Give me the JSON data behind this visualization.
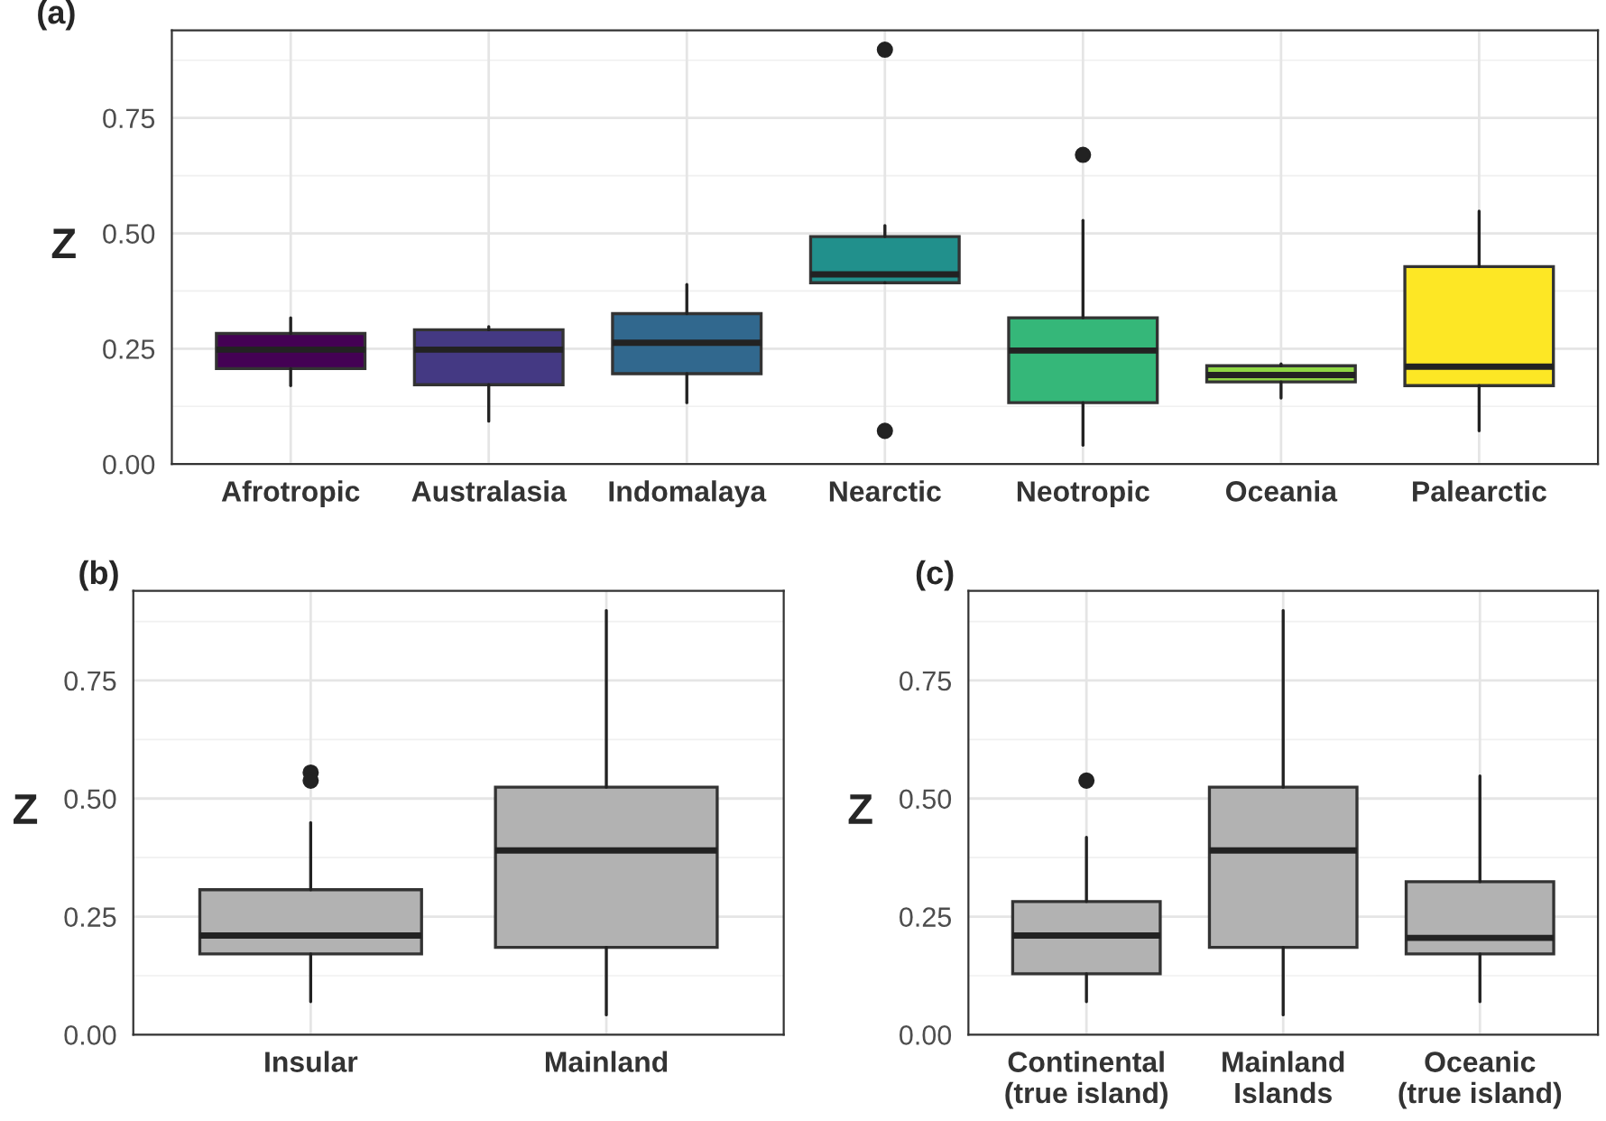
{
  "chart_data": [
    {
      "type": "box",
      "title": "(a)",
      "ylabel": "Z",
      "categories": [
        "Afrotropic",
        "Australasia",
        "Indomalaya",
        "Nearctic",
        "Neotropic",
        "Oceania",
        "Palearctic"
      ],
      "colors": [
        "#440154",
        "#443983",
        "#31688e",
        "#21908c",
        "#35b779",
        "#8fd744",
        "#fde725"
      ],
      "boxes": [
        {
          "low": 0.17,
          "q1": 0.207,
          "median": 0.248,
          "q3": 0.283,
          "high": 0.317
        },
        {
          "low": 0.093,
          "q1": 0.172,
          "median": 0.248,
          "q3": 0.291,
          "high": 0.298
        },
        {
          "low": 0.133,
          "q1": 0.196,
          "median": 0.263,
          "q3": 0.326,
          "high": 0.389
        },
        {
          "low": 0.393,
          "q1": 0.393,
          "median": 0.411,
          "q3": 0.493,
          "high": 0.517,
          "outliers": [
            0.898,
            0.072
          ]
        },
        {
          "low": 0.041,
          "q1": 0.133,
          "median": 0.246,
          "q3": 0.317,
          "high": 0.528,
          "outliers": [
            0.67
          ]
        },
        {
          "low": 0.143,
          "q1": 0.178,
          "median": 0.193,
          "q3": 0.213,
          "high": 0.217
        },
        {
          "low": 0.072,
          "q1": 0.17,
          "median": 0.211,
          "q3": 0.428,
          "high": 0.548
        }
      ],
      "ylim": [
        0,
        0.94
      ],
      "yticks": [
        {
          "value": 0,
          "label": "0.00"
        },
        {
          "value": 0.25,
          "label": "0.25"
        },
        {
          "value": 0.5,
          "label": "0.50"
        },
        {
          "value": 0.75,
          "label": "0.75"
        }
      ],
      "grid": true
    },
    {
      "type": "box",
      "title": "(b)",
      "ylabel": "Z",
      "categories": [
        "Insular",
        "Mainland"
      ],
      "colors": [
        "#b2b2b2",
        "#b2b2b2"
      ],
      "boxes": [
        {
          "low": 0.07,
          "q1": 0.171,
          "median": 0.21,
          "q3": 0.307,
          "high": 0.449,
          "outliers": [
            0.555,
            0.538
          ]
        },
        {
          "low": 0.042,
          "q1": 0.185,
          "median": 0.39,
          "q3": 0.524,
          "high": 0.898
        }
      ],
      "ylim": [
        0,
        0.94
      ],
      "yticks": [
        {
          "value": 0,
          "label": "0.00"
        },
        {
          "value": 0.25,
          "label": "0.25"
        },
        {
          "value": 0.5,
          "label": "0.50"
        },
        {
          "value": 0.75,
          "label": "0.75"
        }
      ],
      "grid": true
    },
    {
      "type": "box",
      "title": "(c)",
      "ylabel": "Z",
      "categories": [
        "Continental\n(true island)",
        "Mainland\nIslands",
        "Oceanic\n(true island)"
      ],
      "colors": [
        "#b2b2b2",
        "#b2b2b2",
        "#b2b2b2"
      ],
      "boxes": [
        {
          "low": 0.07,
          "q1": 0.129,
          "median": 0.21,
          "q3": 0.282,
          "high": 0.418,
          "outliers": [
            0.538
          ]
        },
        {
          "low": 0.042,
          "q1": 0.185,
          "median": 0.39,
          "q3": 0.524,
          "high": 0.898
        },
        {
          "low": 0.07,
          "q1": 0.171,
          "median": 0.205,
          "q3": 0.324,
          "high": 0.548
        }
      ],
      "ylim": [
        0,
        0.94
      ],
      "yticks": [
        {
          "value": 0,
          "label": "0.00"
        },
        {
          "value": 0.25,
          "label": "0.25"
        },
        {
          "value": 0.5,
          "label": "0.50"
        },
        {
          "value": 0.75,
          "label": "0.75"
        }
      ],
      "grid": true
    }
  ]
}
